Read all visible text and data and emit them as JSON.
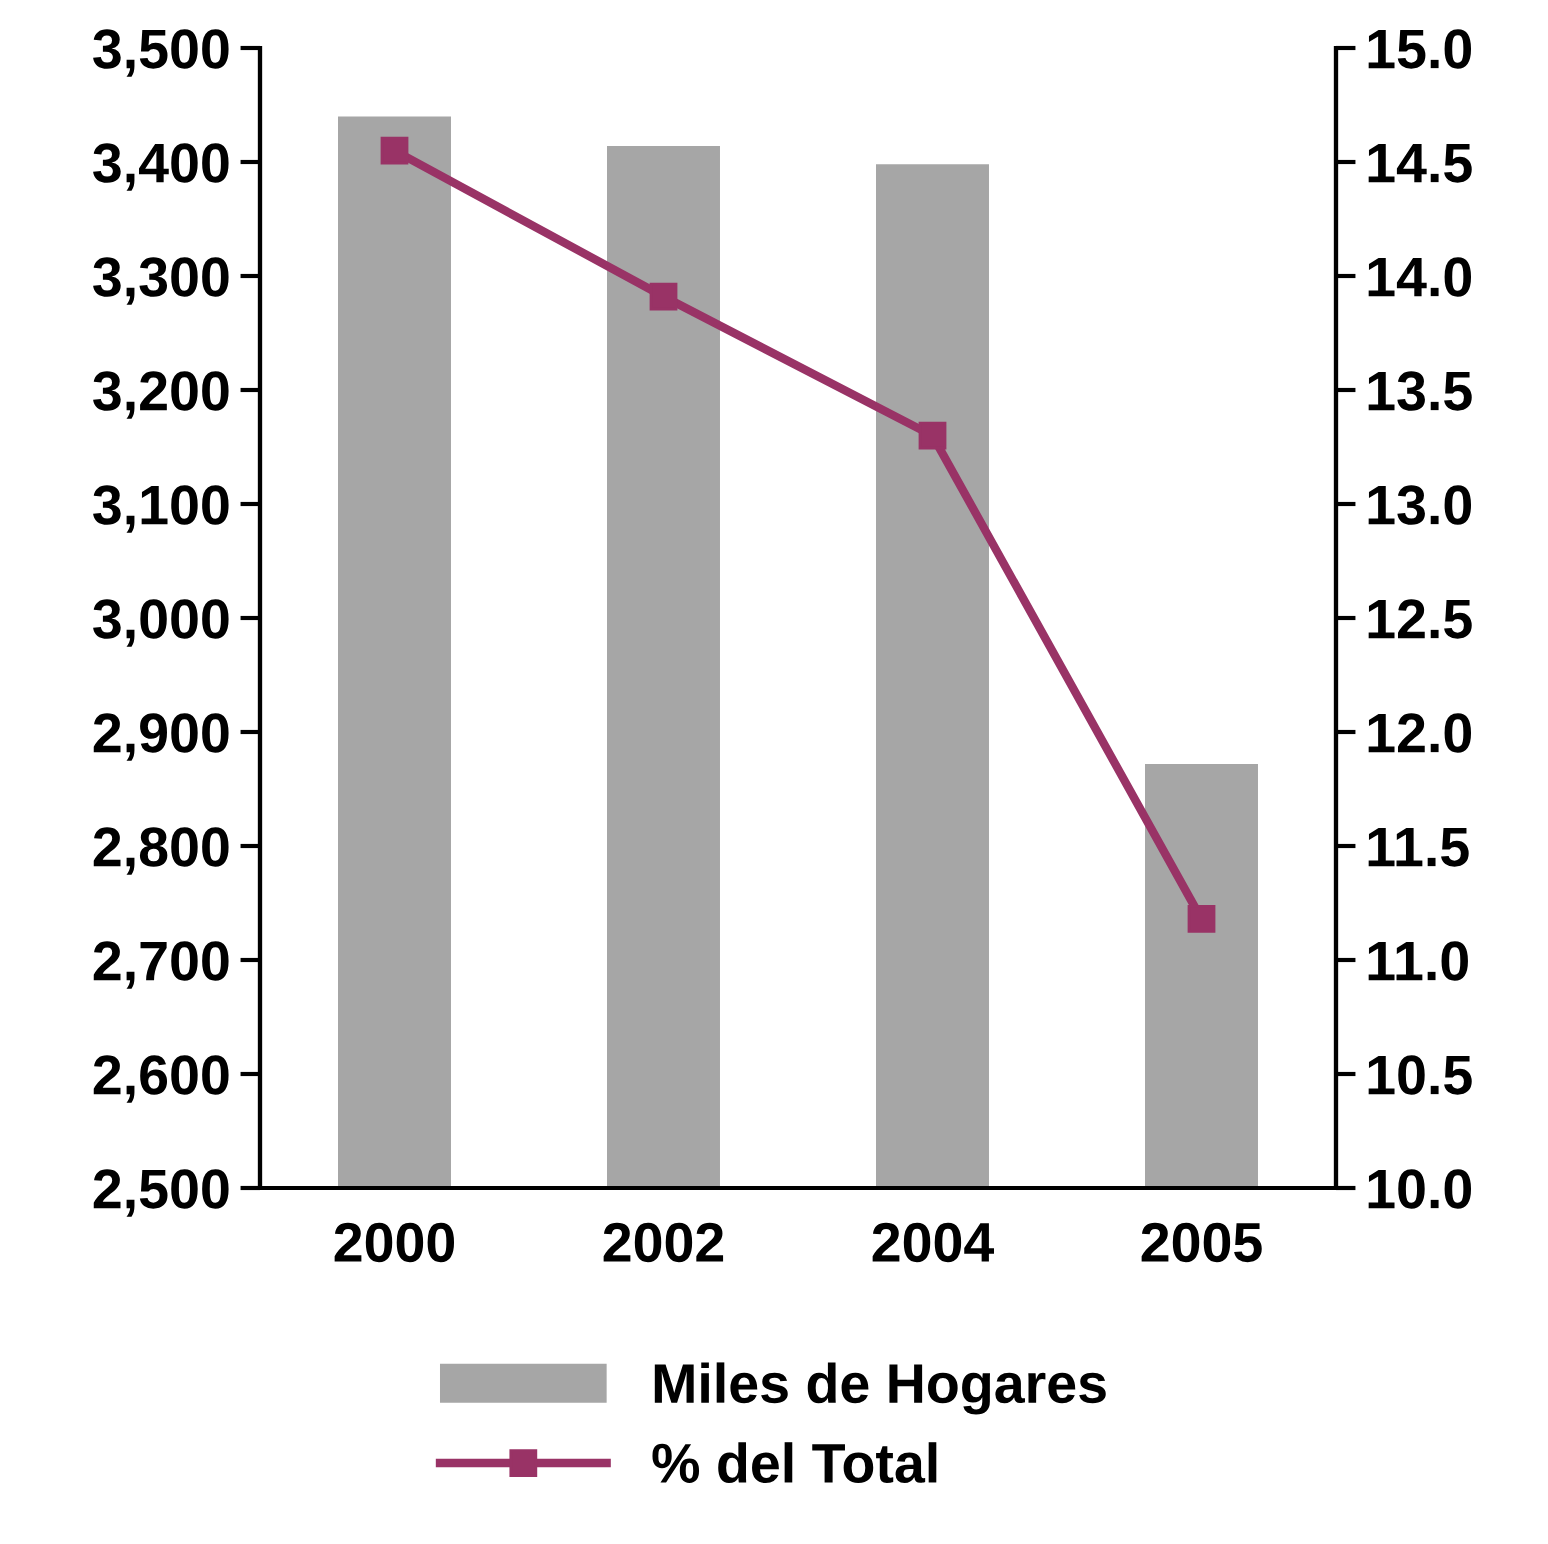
{
  "chart_data": {
    "type": "bar",
    "categories": [
      "2000",
      "2002",
      "2004",
      "2005"
    ],
    "series": [
      {
        "name": "Miles de Hogares",
        "color": "#a6a6a6",
        "values": [
          3440,
          3414,
          3398,
          2872
        ]
      },
      {
        "name": "% del Total",
        "type": "line",
        "axis": "y2",
        "color": "#993366",
        "marker": "square",
        "values": [
          14.55,
          13.91,
          13.3,
          11.18
        ]
      }
    ],
    "ylim": [
      2500,
      3500
    ],
    "yticks": [
      {
        "value": 2500,
        "label": "2,500"
      },
      {
        "value": 2600,
        "label": "2,600"
      },
      {
        "value": 2700,
        "label": "2,700"
      },
      {
        "value": 2800,
        "label": "2,800"
      },
      {
        "value": 2900,
        "label": "2,900"
      },
      {
        "value": 3000,
        "label": "3,000"
      },
      {
        "value": 3100,
        "label": "3,100"
      },
      {
        "value": 3200,
        "label": "3,200"
      },
      {
        "value": 3300,
        "label": "3,300"
      },
      {
        "value": 3400,
        "label": "3,400"
      },
      {
        "value": 3500,
        "label": "3,500"
      }
    ],
    "y2lim": [
      10.0,
      15.0
    ],
    "y2ticks": [
      {
        "value": 10,
        "label": "10.0"
      },
      {
        "value": 10.5,
        "label": "10.5"
      },
      {
        "value": 11,
        "label": "11.0"
      },
      {
        "value": 11.5,
        "label": "11.5"
      },
      {
        "value": 12,
        "label": "12.0"
      },
      {
        "value": 12.5,
        "label": "12.5"
      },
      {
        "value": 13,
        "label": "13.0"
      },
      {
        "value": 13.5,
        "label": "13.5"
      },
      {
        "value": 14,
        "label": "14.0"
      },
      {
        "value": 14.5,
        "label": "14.5"
      },
      {
        "value": 15,
        "label": "15.0"
      }
    ],
    "grid": false,
    "legend": "bottom"
  }
}
